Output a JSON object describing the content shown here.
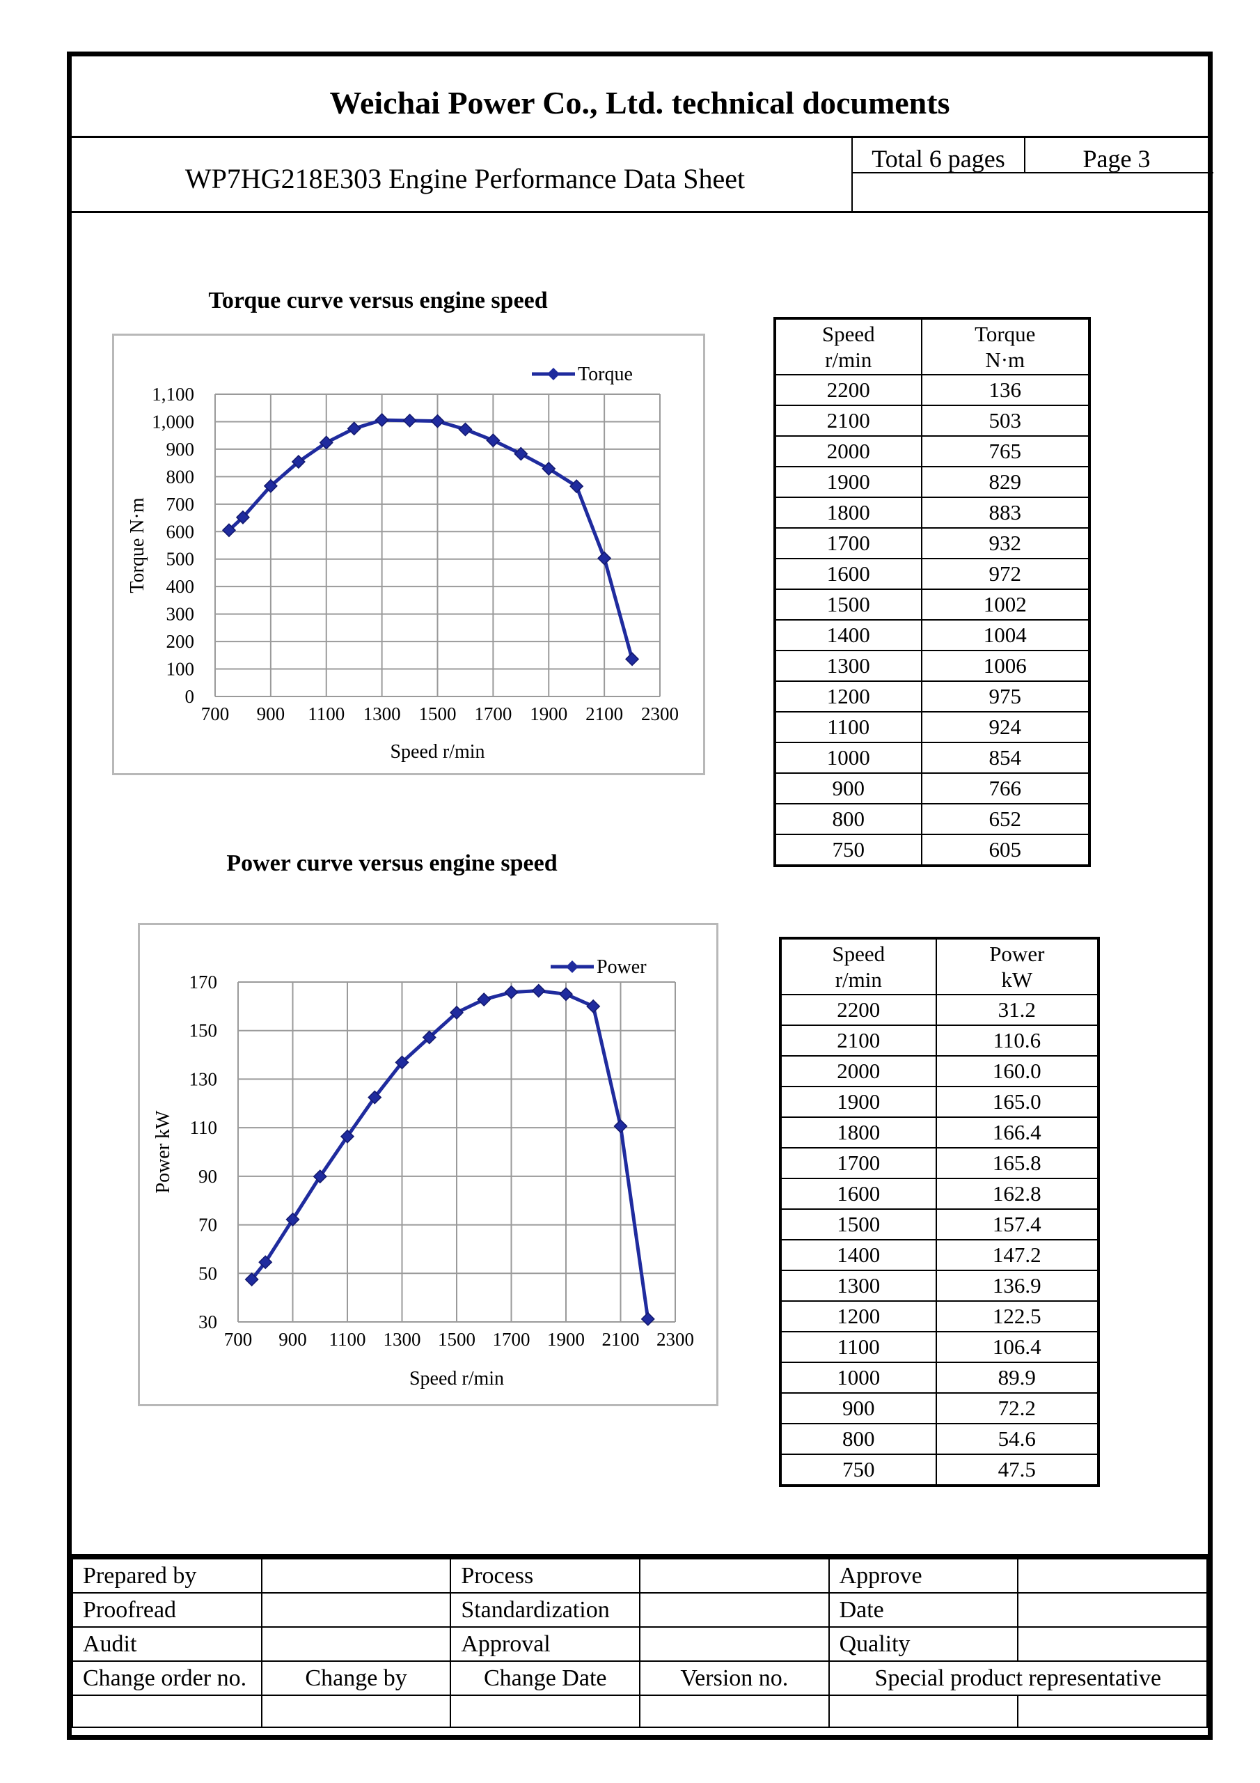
{
  "header": {
    "doc_title": "Weichai Power Co., Ltd. technical documents",
    "sheet_title": "WP7HG218E303 Engine Performance Data Sheet",
    "total_pages": "Total 6 pages",
    "page": "Page 3"
  },
  "torque_section": {
    "title": "Torque curve versus engine speed",
    "table_headers": [
      "Speed\nr/min",
      "Torque\nN·m"
    ],
    "rows": [
      [
        "2200",
        "136"
      ],
      [
        "2100",
        "503"
      ],
      [
        "2000",
        "765"
      ],
      [
        "1900",
        "829"
      ],
      [
        "1800",
        "883"
      ],
      [
        "1700",
        "932"
      ],
      [
        "1600",
        "972"
      ],
      [
        "1500",
        "1002"
      ],
      [
        "1400",
        "1004"
      ],
      [
        "1300",
        "1006"
      ],
      [
        "1200",
        "975"
      ],
      [
        "1100",
        "924"
      ],
      [
        "1000",
        "854"
      ],
      [
        "900",
        "766"
      ],
      [
        "800",
        "652"
      ],
      [
        "750",
        "605"
      ]
    ]
  },
  "power_section": {
    "title": "Power curve versus engine speed",
    "table_headers": [
      "Speed\nr/min",
      "Power\nkW"
    ],
    "rows": [
      [
        "2200",
        "31.2"
      ],
      [
        "2100",
        "110.6"
      ],
      [
        "2000",
        "160.0"
      ],
      [
        "1900",
        "165.0"
      ],
      [
        "1800",
        "166.4"
      ],
      [
        "1700",
        "165.8"
      ],
      [
        "1600",
        "162.8"
      ],
      [
        "1500",
        "157.4"
      ],
      [
        "1400",
        "147.2"
      ],
      [
        "1300",
        "136.9"
      ],
      [
        "1200",
        "122.5"
      ],
      [
        "1100",
        "106.4"
      ],
      [
        "1000",
        "89.9"
      ],
      [
        "900",
        "72.2"
      ],
      [
        "800",
        "54.6"
      ],
      [
        "750",
        "47.5"
      ]
    ]
  },
  "chart_data": [
    {
      "type": "line",
      "title": "Torque curve versus engine speed",
      "xlabel": "Speed  r/min",
      "ylabel": "Torque N·m",
      "xlim": [
        700,
        2300
      ],
      "ylim": [
        0,
        1100
      ],
      "x_ticks": [
        "700",
        "900",
        "1100",
        "1300",
        "1500",
        "1700",
        "1900",
        "2100",
        "2300"
      ],
      "y_ticks": [
        "0",
        "100",
        "200",
        "300",
        "400",
        "500",
        "600",
        "700",
        "800",
        "900",
        "1,000",
        "1,100"
      ],
      "grid": true,
      "legend_position": "top-right",
      "color": "#1f2b9e",
      "series": [
        {
          "name": "Torque",
          "x": [
            750,
            800,
            900,
            1000,
            1100,
            1200,
            1300,
            1400,
            1500,
            1600,
            1700,
            1800,
            1900,
            2000,
            2100,
            2200
          ],
          "values": [
            605,
            652,
            766,
            854,
            924,
            975,
            1006,
            1004,
            1002,
            972,
            932,
            883,
            829,
            765,
            503,
            136
          ]
        }
      ]
    },
    {
      "type": "line",
      "title": "Power curve versus engine speed",
      "xlabel": "Speed  r/min",
      "ylabel": "Power kW",
      "xlim": [
        700,
        2300
      ],
      "ylim": [
        30,
        170
      ],
      "x_ticks": [
        "700",
        "900",
        "1100",
        "1300",
        "1500",
        "1700",
        "1900",
        "2100",
        "2300"
      ],
      "y_ticks": [
        "30",
        "50",
        "70",
        "90",
        "110",
        "130",
        "150",
        "170"
      ],
      "grid": true,
      "legend_position": "top-right",
      "color": "#1f2b9e",
      "series": [
        {
          "name": "Power",
          "x": [
            750,
            800,
            900,
            1000,
            1100,
            1200,
            1300,
            1400,
            1500,
            1600,
            1700,
            1800,
            1900,
            2000,
            2100,
            2200
          ],
          "values": [
            47.5,
            54.6,
            72.2,
            89.9,
            106.4,
            122.5,
            136.9,
            147.2,
            157.4,
            162.8,
            165.8,
            166.4,
            165.0,
            160.0,
            110.6,
            31.2
          ]
        }
      ]
    }
  ],
  "signature_block": {
    "rows": [
      [
        "Prepared by",
        "",
        "Process",
        "",
        "Approve",
        ""
      ],
      [
        "Proofread",
        "",
        "Standardization",
        "",
        "Date",
        ""
      ],
      [
        "Audit",
        "",
        "Approval",
        "",
        "Quality",
        ""
      ]
    ],
    "footer_labels": [
      "Change order no.",
      "Change by",
      "Change Date",
      "Version no.",
      "Special product representative"
    ]
  }
}
